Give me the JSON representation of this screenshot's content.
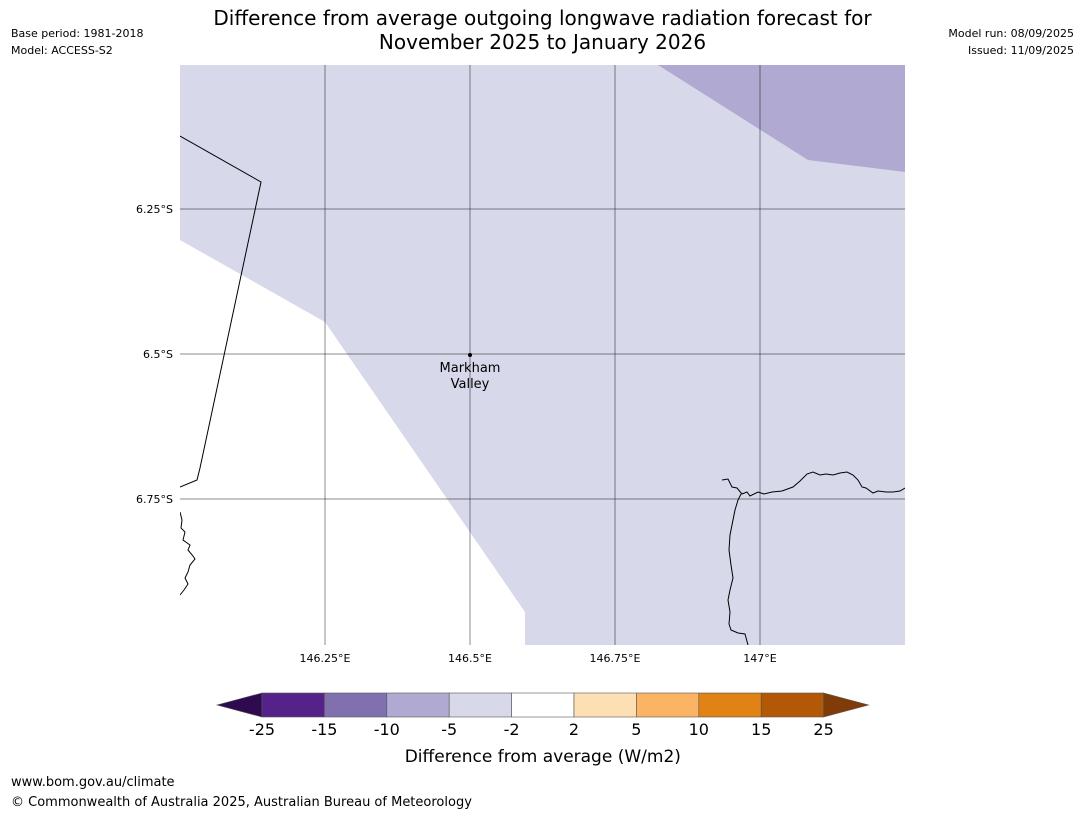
{
  "header": {
    "base_period": "Base period: 1981-2018",
    "model": "Model: ACCESS-S2",
    "model_run": "Model run: 08/09/2025",
    "issued": "Issued: 11/09/2025",
    "title_line1": "Difference from average outgoing longwave radiation forecast for",
    "title_line2": "November 2025 to January 2026"
  },
  "map": {
    "lon_ticks": [
      "146.25°E",
      "146.5°E",
      "146.75°E",
      "147°E"
    ],
    "lat_ticks": [
      "6.25°S",
      "6.5°S",
      "6.75°S"
    ],
    "place": {
      "name_line1": "Markham",
      "name_line2": "Valley"
    },
    "region_colors": {
      "light_lavender": "#d7d8ea",
      "medium_lavender": "#b0aad2",
      "white": "#ffffff"
    }
  },
  "colorbar": {
    "ticks": [
      "-25",
      "-15",
      "-10",
      "-5",
      "-2",
      "2",
      "5",
      "10",
      "15",
      "25"
    ],
    "colors": [
      "#2d0b4e",
      "#542288",
      "#8170ae",
      "#b0aad2",
      "#d7d8ea",
      "#ffffff",
      "#fddfb4",
      "#fbb463",
      "#e08214",
      "#b35806",
      "#7f3b08"
    ],
    "label": "Difference from average (W/m2)"
  },
  "footer": {
    "url": "www.bom.gov.au/climate",
    "copyright": "© Commonwealth of Australia 2025, Australian Bureau of Meteorology"
  }
}
